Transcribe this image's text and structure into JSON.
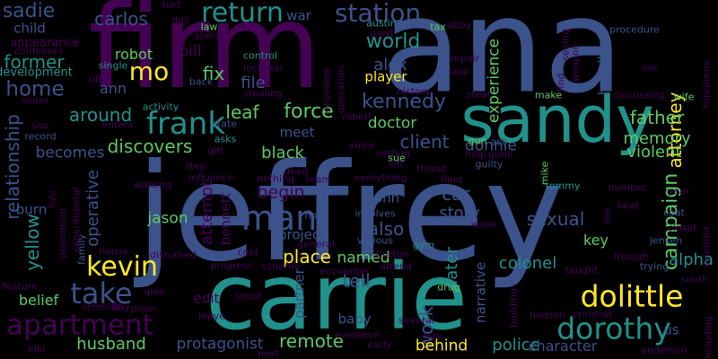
{
  "palette": {
    "background": "#000000",
    "deep_purple": "#440154",
    "indigo": "#3b528b",
    "teal": "#21918c",
    "green": "#5ec962",
    "yellow": "#fde725"
  },
  "words": [
    {
      "text": "jeffrey",
      "color": "#3b528b"
    },
    {
      "text": "ana",
      "color": "#3b528b"
    },
    {
      "text": "firm",
      "color": "#440154"
    },
    {
      "text": "carrie",
      "color": "#21918c"
    },
    {
      "text": "sandy",
      "color": "#21918c"
    },
    {
      "text": "man",
      "color": "#3b528b"
    },
    {
      "text": "kevin",
      "color": "#fde725"
    },
    {
      "text": "dolittle",
      "color": "#fde725"
    },
    {
      "text": "frank",
      "color": "#21918c"
    },
    {
      "text": "return",
      "color": "#21918c"
    },
    {
      "text": "station",
      "color": "#3b528b"
    },
    {
      "text": "dorothy",
      "color": "#21918c"
    },
    {
      "text": "apartment",
      "color": "#440154"
    },
    {
      "text": "take",
      "color": "#3b528b"
    },
    {
      "text": "home",
      "color": "#3b528b"
    },
    {
      "text": "mo",
      "color": "#fde725"
    },
    {
      "text": "world",
      "color": "#21918c"
    },
    {
      "text": "alex",
      "color": "#3b528b"
    },
    {
      "text": "leaf",
      "color": "#5ec962"
    },
    {
      "text": "force",
      "color": "#5ec962"
    },
    {
      "text": "kennedy",
      "color": "#3b528b"
    },
    {
      "text": "attorney",
      "color": "#fde725"
    },
    {
      "text": "campaign",
      "color": "#5ec962"
    },
    {
      "text": "sadie",
      "color": "#3b528b"
    },
    {
      "text": "carlos",
      "color": "#3b528b"
    },
    {
      "text": "former",
      "color": "#21918c"
    },
    {
      "text": "around",
      "color": "#21918c"
    },
    {
      "text": "discovers",
      "color": "#5ec962"
    },
    {
      "text": "robot",
      "color": "#5ec962"
    },
    {
      "text": "ann",
      "color": "#3b528b"
    },
    {
      "text": "fix",
      "color": "#5ec962"
    },
    {
      "text": "file",
      "color": "#3b528b"
    },
    {
      "text": "pill",
      "color": "#440154"
    },
    {
      "text": "player",
      "color": "#fde725"
    },
    {
      "text": "doctor",
      "color": "#5ec962"
    },
    {
      "text": "client",
      "color": "#3b528b"
    },
    {
      "text": "donnie",
      "color": "#3b528b"
    },
    {
      "text": "father",
      "color": "#5ec962"
    },
    {
      "text": "memory",
      "color": "#5ec962"
    },
    {
      "text": "violent",
      "color": "#5ec962"
    },
    {
      "text": "hamilton",
      "color": "#3b528b"
    },
    {
      "text": "experience",
      "color": "#5ec962"
    },
    {
      "text": "war",
      "color": "#3b528b"
    },
    {
      "text": "relationship",
      "color": "#3b528b"
    },
    {
      "text": "yellow",
      "color": "#21918c"
    },
    {
      "text": "becomes",
      "color": "#3b528b"
    },
    {
      "text": "black",
      "color": "#5ec962"
    },
    {
      "text": "meet",
      "color": "#3b528b"
    },
    {
      "text": "begin",
      "color": "#440154"
    },
    {
      "text": "car",
      "color": "#3b528b"
    },
    {
      "text": "story",
      "color": "#3b528b"
    },
    {
      "text": "sexual",
      "color": "#3b528b"
    },
    {
      "text": "attempt",
      "color": "#440154"
    },
    {
      "text": "jason",
      "color": "#5ec962"
    },
    {
      "text": "operative",
      "color": "#3b528b"
    },
    {
      "text": "john",
      "color": "#3b528b"
    },
    {
      "text": "also",
      "color": "#3b528b"
    },
    {
      "text": "place",
      "color": "#fde725"
    },
    {
      "text": "project",
      "color": "#3b528b"
    },
    {
      "text": "named",
      "color": "#5ec962"
    },
    {
      "text": "colonel",
      "color": "#21918c"
    },
    {
      "text": "alpha",
      "color": "#21918c"
    },
    {
      "text": "key",
      "color": "#5ec962"
    },
    {
      "text": "belief",
      "color": "#5ec962"
    },
    {
      "text": "work",
      "color": "#3b528b"
    },
    {
      "text": "later",
      "color": "#21918c"
    },
    {
      "text": "narrative",
      "color": "#3b528b"
    },
    {
      "text": "tell",
      "color": "#3b528b"
    },
    {
      "text": "baby",
      "color": "#3b528b"
    },
    {
      "text": "husband",
      "color": "#5ec962"
    },
    {
      "text": "protagonist",
      "color": "#3b528b"
    },
    {
      "text": "remote",
      "color": "#5ec962"
    },
    {
      "text": "behind",
      "color": "#fde725"
    },
    {
      "text": "police",
      "color": "#21918c"
    },
    {
      "text": "character",
      "color": "#3b528b"
    },
    {
      "text": "us",
      "color": "#3b528b"
    },
    {
      "text": "partner",
      "color": "#3b528b"
    },
    {
      "text": "bennett",
      "color": "#440154"
    },
    {
      "text": "edit",
      "color": "#440154"
    },
    {
      "text": "child",
      "color": "#3b528b"
    },
    {
      "text": "appearance",
      "color": "#440154"
    },
    {
      "text": "confesses",
      "color": "#440154"
    },
    {
      "text": "development",
      "color": "#21918c"
    },
    {
      "text": "offer",
      "color": "#440154"
    },
    {
      "text": "single",
      "color": "#21918c"
    },
    {
      "text": "enters",
      "color": "#440154"
    },
    {
      "text": "enter",
      "color": "#440154"
    },
    {
      "text": "son",
      "color": "#440154"
    },
    {
      "text": "record",
      "color": "#3b528b"
    },
    {
      "text": "activity",
      "color": "#21918c"
    },
    {
      "text": "back",
      "color": "#3b528b"
    },
    {
      "text": "alone",
      "color": "#440154"
    },
    {
      "text": "law",
      "color": "#5ec962"
    },
    {
      "text": "bad",
      "color": "#440154"
    },
    {
      "text": "doll",
      "color": "#440154"
    },
    {
      "text": "control",
      "color": "#21918c"
    },
    {
      "text": "location",
      "color": "#440154"
    },
    {
      "text": "stealing",
      "color": "#440154"
    },
    {
      "text": "envelope",
      "color": "#440154"
    },
    {
      "text": "operation",
      "color": "#440154"
    },
    {
      "text": "austin",
      "color": "#21918c"
    },
    {
      "text": "used",
      "color": "#440154"
    },
    {
      "text": "tax",
      "color": "#5ec962"
    },
    {
      "text": "abby",
      "color": "#440154"
    },
    {
      "text": "history",
      "color": "#440154"
    },
    {
      "text": "repair",
      "color": "#440154"
    },
    {
      "text": "seal",
      "color": "#440154"
    },
    {
      "text": "steal",
      "color": "#440154"
    },
    {
      "text": "find",
      "color": "#440154"
    },
    {
      "text": "seeing",
      "color": "#440154"
    },
    {
      "text": "weapon",
      "color": "#440154"
    },
    {
      "text": "make",
      "color": "#5ec962"
    },
    {
      "text": "procedure",
      "color": "#3b528b"
    },
    {
      "text": "mike",
      "color": "#5ec962"
    },
    {
      "text": "discussing",
      "color": "#440154"
    },
    {
      "text": "ear",
      "color": "#440154"
    },
    {
      "text": "wife",
      "color": "#5ec962"
    },
    {
      "text": "threatens",
      "color": "#440154"
    },
    {
      "text": "robert",
      "color": "#440154"
    },
    {
      "text": "state",
      "color": "#3b528b"
    },
    {
      "text": "asks",
      "color": "#21918c"
    },
    {
      "text": "gift",
      "color": "#440154"
    },
    {
      "text": "step",
      "color": "#440154"
    },
    {
      "text": "voice",
      "color": "#440154"
    },
    {
      "text": "setting",
      "color": "#440154"
    },
    {
      "text": "gun",
      "color": "#5ec962"
    },
    {
      "text": "act",
      "color": "#3b528b"
    },
    {
      "text": "gene",
      "color": "#440154"
    },
    {
      "text": "help",
      "color": "#440154"
    },
    {
      "text": "guilty",
      "color": "#3b528b"
    },
    {
      "text": "dead",
      "color": "#440154"
    },
    {
      "text": "left",
      "color": "#440154"
    },
    {
      "text": "sue",
      "color": "#5ec962"
    },
    {
      "text": "threat",
      "color": "#440154"
    },
    {
      "text": "everything",
      "color": "#440154"
    },
    {
      "text": "team",
      "color": "#440154"
    },
    {
      "text": "nothing",
      "color": "#440154"
    },
    {
      "text": "walking",
      "color": "#440154"
    },
    {
      "text": "influence",
      "color": "#440154"
    },
    {
      "text": "burn",
      "color": "#3b528b"
    },
    {
      "text": "fight",
      "color": "#440154"
    },
    {
      "text": "experimental",
      "color": "#440154"
    },
    {
      "text": "promotion",
      "color": "#440154"
    },
    {
      "text": "family",
      "color": "#3b528b"
    },
    {
      "text": "house",
      "color": "#440154"
    },
    {
      "text": "hour",
      "color": "#3b528b"
    },
    {
      "text": "involves",
      "color": "#3b528b"
    },
    {
      "text": "various",
      "color": "#3b528b"
    },
    {
      "text": "field",
      "color": "#440154"
    },
    {
      "text": "breaking",
      "color": "#3b528b"
    },
    {
      "text": "wake",
      "color": "#440154"
    },
    {
      "text": "tommy",
      "color": "#21918c"
    },
    {
      "text": "number",
      "color": "#440154"
    },
    {
      "text": "beat",
      "color": "#440154"
    },
    {
      "text": "coat",
      "color": "#3b528b"
    },
    {
      "text": "year",
      "color": "#440154"
    },
    {
      "text": "sex",
      "color": "#440154"
    },
    {
      "text": "closet",
      "color": "#440154"
    },
    {
      "text": "jensen",
      "color": "#3b528b"
    },
    {
      "text": "scientist",
      "color": "#440154"
    },
    {
      "text": "cold",
      "color": "#440154"
    },
    {
      "text": "disturbed",
      "color": "#440154"
    },
    {
      "text": "progress",
      "color": "#440154"
    },
    {
      "text": "scheme",
      "color": "#440154"
    },
    {
      "text": "encounter",
      "color": "#440154"
    },
    {
      "text": "general",
      "color": "#440154"
    },
    {
      "text": "gym",
      "color": "#21918c"
    },
    {
      "text": "button",
      "color": "#440154"
    },
    {
      "text": "attend",
      "color": "#440154"
    },
    {
      "text": "drug",
      "color": "#5ec962"
    },
    {
      "text": "building",
      "color": "#440154"
    },
    {
      "text": "though",
      "color": "#440154"
    },
    {
      "text": "trying",
      "color": "#3b528b"
    },
    {
      "text": "south",
      "color": "#440154"
    },
    {
      "text": "taught",
      "color": "#440154"
    },
    {
      "text": "hudson",
      "color": "#440154"
    },
    {
      "text": "criminal",
      "color": "#440154"
    },
    {
      "text": "feature",
      "color": "#440154"
    },
    {
      "text": "schmidt",
      "color": "#440154"
    },
    {
      "text": "day",
      "color": "#440154"
    },
    {
      "text": "prom",
      "color": "#440154"
    },
    {
      "text": "give",
      "color": "#440154"
    },
    {
      "text": "shoot",
      "color": "#440154"
    },
    {
      "text": "leave",
      "color": "#440154"
    },
    {
      "text": "evidence",
      "color": "#440154"
    },
    {
      "text": "several",
      "color": "#440154"
    },
    {
      "text": "way",
      "color": "#440154"
    },
    {
      "text": "kiki",
      "color": "#440154"
    },
    {
      "text": "next",
      "color": "#440154"
    },
    {
      "text": "early",
      "color": "#440154"
    },
    {
      "text": "anderson",
      "color": "#440154"
    },
    {
      "text": "including",
      "color": "#440154"
    }
  ]
}
